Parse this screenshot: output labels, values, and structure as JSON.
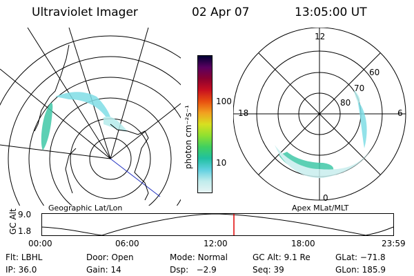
{
  "header": {
    "title": "Ultraviolet Imager",
    "date": "02 Apr 07",
    "time": "13:05:00 UT"
  },
  "maps": {
    "left_label": "Geographic Lat/Lon",
    "right_label": "Apex MLat/MLT",
    "mlt_labels": {
      "top": "12",
      "right": "6",
      "bottom": "0",
      "left": "18"
    },
    "lat_labels": [
      "60",
      "70",
      "80"
    ]
  },
  "colorbar": {
    "unit_label": "photon cm⁻²s⁻¹",
    "ticks": [
      "100",
      "10"
    ],
    "colors": [
      "#000033",
      "#5a0060",
      "#8b0030",
      "#c81020",
      "#e85010",
      "#f2a020",
      "#d8e020",
      "#90e030",
      "#40d060",
      "#20c0a0",
      "#60d0e0",
      "#c0ecec",
      "#e8f4f4"
    ]
  },
  "orbit_plot": {
    "ylabel": "GC Alt",
    "yticks": [
      "9.0",
      "1.8"
    ],
    "xticks": [
      "00:00",
      "06:00",
      "12:00",
      "18:00",
      "23:59"
    ],
    "marker_time": "13:05"
  },
  "footer": {
    "row1": [
      {
        "key": "Flt:",
        "value": "LBHL"
      },
      {
        "key": "Door:",
        "value": "Open"
      },
      {
        "key": "Mode:",
        "value": "Normal"
      },
      {
        "key": "GC Alt:",
        "value": "9.1 Re"
      },
      {
        "key": "GLat:",
        "value": "−71.8"
      }
    ],
    "row2": [
      {
        "key": "IP:",
        "value": "36.0"
      },
      {
        "key": "Gain:",
        "value": "14"
      },
      {
        "key": "Dsp:",
        "value": "  −2.9"
      },
      {
        "key": "Seq:",
        "value": "39"
      },
      {
        "key": "GLon:",
        "value": "185.9"
      }
    ]
  }
}
